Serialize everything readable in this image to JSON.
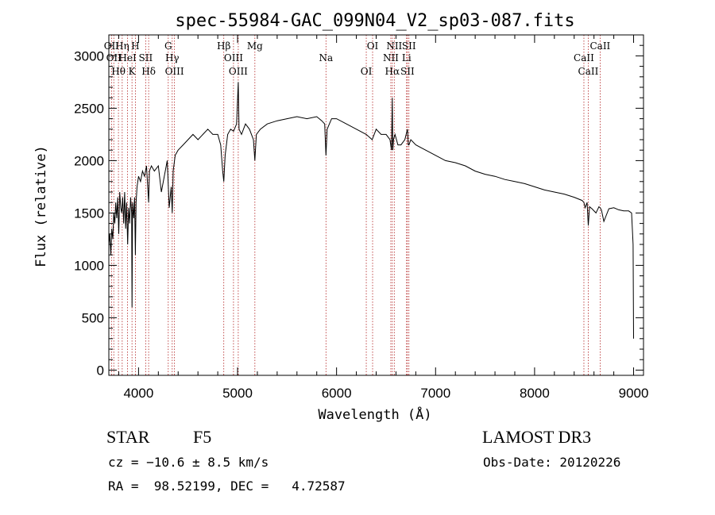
{
  "chart_data": {
    "type": "line",
    "title": "spec-55984-GAC_099N04_V2_sp03-087.fits",
    "xlabel": "Wavelength (Å)",
    "ylabel": "Flux (relative)",
    "xlim": [
      3700,
      9100
    ],
    "ylim": [
      -50,
      3200
    ],
    "xticks": [
      4000,
      5000,
      6000,
      7000,
      8000,
      9000
    ],
    "yticks": [
      0,
      500,
      1000,
      1500,
      2000,
      2500,
      3000
    ],
    "series": [
      {
        "name": "spectrum",
        "x": [
          3700,
          3710,
          3720,
          3730,
          3740,
          3750,
          3760,
          3770,
          3780,
          3790,
          3800,
          3810,
          3820,
          3830,
          3840,
          3850,
          3860,
          3870,
          3880,
          3890,
          3900,
          3910,
          3920,
          3930,
          3934,
          3940,
          3950,
          3960,
          3968,
          3975,
          3985,
          4000,
          4020,
          4040,
          4060,
          4080,
          4102,
          4110,
          4130,
          4160,
          4200,
          4230,
          4260,
          4290,
          4310,
          4330,
          4340,
          4350,
          4370,
          4400,
          4450,
          4500,
          4550,
          4600,
          4650,
          4700,
          4750,
          4800,
          4830,
          4850,
          4861,
          4875,
          4900,
          4930,
          4960,
          4990,
          5007,
          5015,
          5040,
          5080,
          5120,
          5160,
          5175,
          5190,
          5230,
          5300,
          5400,
          5500,
          5600,
          5700,
          5800,
          5850,
          5880,
          5893,
          5905,
          5950,
          6000,
          6100,
          6200,
          6300,
          6360,
          6400,
          6450,
          6500,
          6540,
          6555,
          6563,
          6568,
          6575,
          6590,
          6620,
          6650,
          6690,
          6716,
          6725,
          6731,
          6750,
          6800,
          6900,
          7000,
          7100,
          7200,
          7300,
          7400,
          7500,
          7600,
          7700,
          7800,
          7900,
          8000,
          8100,
          8200,
          8300,
          8400,
          8480,
          8498,
          8510,
          8530,
          8542,
          8555,
          8580,
          8620,
          8650,
          8662,
          8675,
          8700,
          8750,
          8800,
          8850,
          8900,
          8950,
          8980,
          8995,
          9000
        ],
        "y": [
          1200,
          1300,
          1100,
          1350,
          1250,
          1500,
          1400,
          1600,
          1450,
          1650,
          1300,
          1700,
          1550,
          1500,
          1650,
          1400,
          1700,
          1350,
          1600,
          1200,
          1550,
          1400,
          1650,
          1500,
          600,
          1600,
          1450,
          1650,
          1100,
          1600,
          1750,
          1850,
          1800,
          1900,
          1850,
          1950,
          1600,
          1900,
          1950,
          1900,
          1950,
          1700,
          1850,
          2000,
          1550,
          1750,
          1500,
          1900,
          2050,
          2100,
          2150,
          2200,
          2250,
          2200,
          2250,
          2300,
          2250,
          2250,
          2150,
          1900,
          1800,
          2050,
          2250,
          2300,
          2280,
          2350,
          2750,
          2300,
          2250,
          2350,
          2300,
          2200,
          2000,
          2250,
          2300,
          2350,
          2380,
          2400,
          2420,
          2400,
          2420,
          2380,
          2350,
          2050,
          2300,
          2400,
          2400,
          2350,
          2300,
          2250,
          2200,
          2300,
          2250,
          2250,
          2200,
          2100,
          2600,
          2100,
          2200,
          2250,
          2150,
          2150,
          2200,
          2300,
          2150,
          2150,
          2200,
          2150,
          2100,
          2050,
          2000,
          1980,
          1950,
          1900,
          1870,
          1850,
          1820,
          1800,
          1780,
          1750,
          1720,
          1700,
          1680,
          1650,
          1620,
          1600,
          1550,
          1600,
          1380,
          1560,
          1540,
          1500,
          1560,
          1550,
          1530,
          1420,
          1540,
          1550,
          1530,
          1520,
          1520,
          1500,
          1200,
          300
        ]
      }
    ],
    "line_markers": [
      {
        "wavelength": 3727,
        "label": "OII"
      },
      {
        "wavelength": 3750,
        "label": "OII"
      },
      {
        "wavelength": 3797,
        "label": "Hθ"
      },
      {
        "wavelength": 3835,
        "label": "Hη"
      },
      {
        "wavelength": 3889,
        "label": "HeI"
      },
      {
        "wavelength": 3934,
        "label": "K"
      },
      {
        "wavelength": 3968,
        "label": "H"
      },
      {
        "wavelength": 4072,
        "label": "SII"
      },
      {
        "wavelength": 4102,
        "label": "Hδ"
      },
      {
        "wavelength": 4300,
        "label": "G"
      },
      {
        "wavelength": 4340,
        "label": "Hγ"
      },
      {
        "wavelength": 4363,
        "label": "OIII"
      },
      {
        "wavelength": 4861,
        "label": "Hβ"
      },
      {
        "wavelength": 4959,
        "label": "OIII"
      },
      {
        "wavelength": 5007,
        "label": "OIII"
      },
      {
        "wavelength": 5175,
        "label": "Mg"
      },
      {
        "wavelength": 5893,
        "label": "Na"
      },
      {
        "wavelength": 6300,
        "label": "OI"
      },
      {
        "wavelength": 6364,
        "label": "OI"
      },
      {
        "wavelength": 6548,
        "label": "NII"
      },
      {
        "wavelength": 6563,
        "label": "Hα"
      },
      {
        "wavelength": 6583,
        "label": "NII"
      },
      {
        "wavelength": 6707,
        "label": "Li"
      },
      {
        "wavelength": 6716,
        "label": "SII"
      },
      {
        "wavelength": 6731,
        "label": "SII"
      },
      {
        "wavelength": 8498,
        "label": "CaII"
      },
      {
        "wavelength": 8542,
        "label": "CaII"
      },
      {
        "wavelength": 8662,
        "label": "CaII"
      }
    ]
  },
  "info": {
    "object_class": "STAR",
    "subclass": "F5",
    "survey": "LAMOST DR3",
    "redshift_text": "cz = −10.6 ± 8.5 km/s",
    "obs_date_text": "Obs-Date: 20120226",
    "coords_text": "RA =  98.52199, DEC =   4.72587"
  },
  "colors": {
    "spectrum": "#000000",
    "marker": "#b22222",
    "axis": "#000000"
  }
}
